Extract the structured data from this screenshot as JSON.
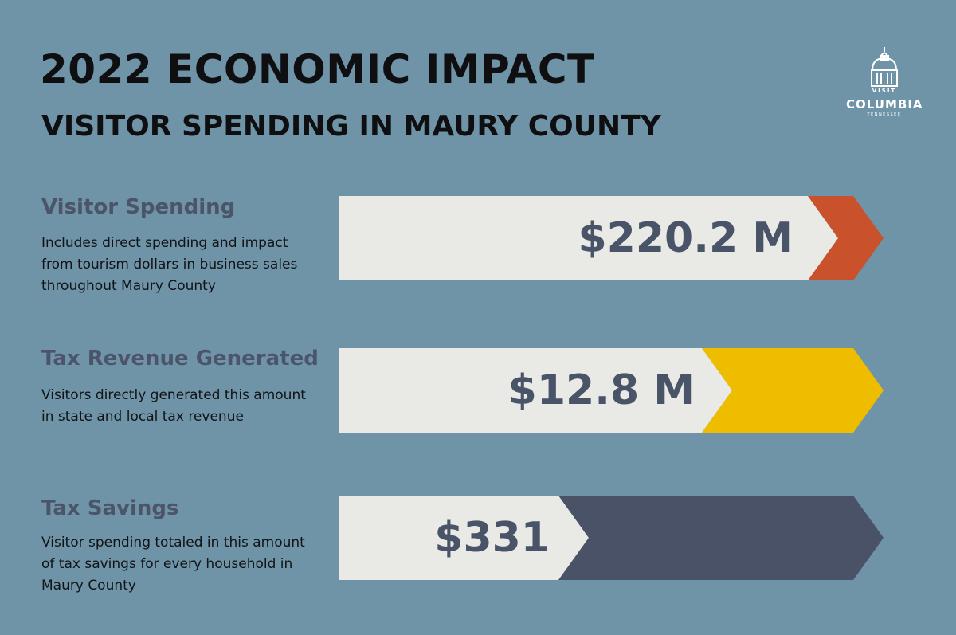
{
  "header": {
    "title": "2022 ECONOMIC IMPACT",
    "subtitle": "VISITOR SPENDING IN MAURY COUNTY"
  },
  "logo": {
    "icon": "courthouse-dome-icon",
    "visit": "VISIT",
    "name": "COLUMBIA",
    "state": "TENNESSEE"
  },
  "metrics": [
    {
      "label": "Visitor Spending",
      "description": "Includes direct spending and impact from tourism dollars in business sales throughout Maury County",
      "value": "$220.2 M",
      "accent_color": "#c9522c"
    },
    {
      "label": "Tax Revenue Generated",
      "description": "Visitors directly generated this amount in state and local tax revenue",
      "value": "$12.8 M",
      "accent_color": "#efbd00"
    },
    {
      "label": "Tax Savings",
      "description": "Visitor spending totaled in this amount of tax savings for every household in Maury County",
      "value": "$331",
      "accent_color": "#495266"
    }
  ],
  "colors": {
    "background": "#6f94a8",
    "bar_fill": "#e9eae6",
    "label_color": "#4b5468",
    "value_color": "#4a5468"
  }
}
